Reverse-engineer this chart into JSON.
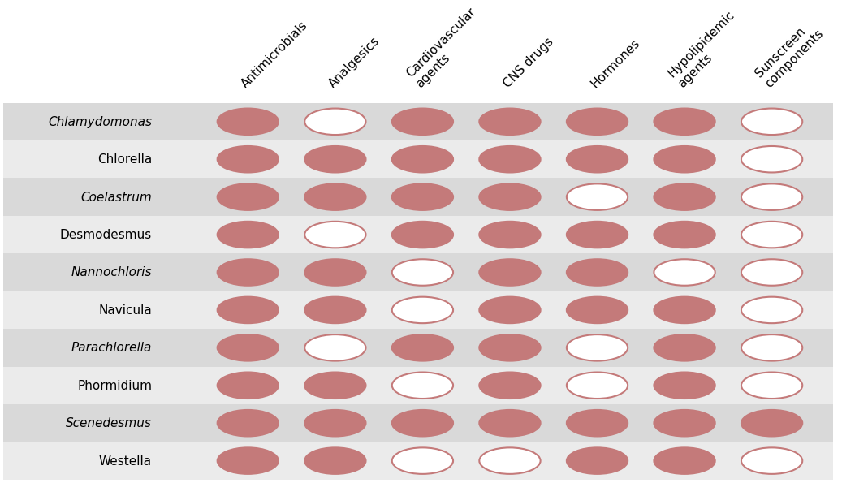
{
  "columns": [
    "Antimicrobials",
    "Analgesics",
    "Cardiovascular\nagents",
    "CNS drugs",
    "Hormones",
    "Hypolipidemic\nagents",
    "Sunscreen\ncomponents"
  ],
  "rows": [
    "Chlamydomonas",
    "Chlorella",
    "Coelastrum",
    "Desmodesmus",
    "Nannochloris",
    "Navicula",
    "Parachlorella",
    "Phormidium",
    "Scenedesmus",
    "Westella"
  ],
  "filled_color": "#C47A7A",
  "empty_color": "#FFFFFF",
  "bg_color_odd": "#D9D9D9",
  "bg_color_even": "#EBEBEB",
  "circle_edge_color": "#C47A7A",
  "data": [
    [
      1,
      0,
      1,
      1,
      1,
      1,
      0
    ],
    [
      1,
      1,
      1,
      1,
      1,
      1,
      0
    ],
    [
      1,
      1,
      1,
      1,
      0,
      1,
      0
    ],
    [
      1,
      0,
      1,
      1,
      1,
      1,
      0
    ],
    [
      1,
      1,
      0,
      1,
      1,
      0,
      0
    ],
    [
      1,
      1,
      0,
      1,
      1,
      1,
      0
    ],
    [
      1,
      0,
      1,
      1,
      0,
      1,
      0
    ],
    [
      1,
      1,
      0,
      1,
      0,
      1,
      0
    ],
    [
      1,
      1,
      1,
      1,
      1,
      1,
      1
    ],
    [
      1,
      1,
      0,
      0,
      1,
      1,
      0
    ]
  ],
  "row_italic": [
    true,
    false,
    true,
    false,
    true,
    false,
    true,
    false,
    true,
    false
  ]
}
